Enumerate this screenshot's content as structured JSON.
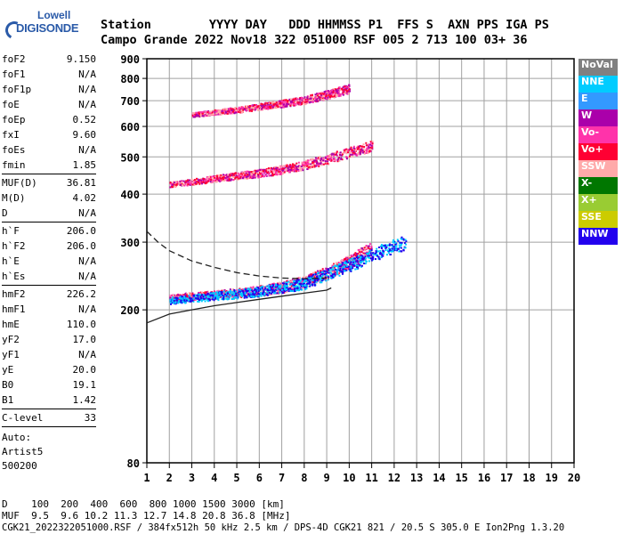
{
  "logo": {
    "line1": "Lowell",
    "line2": "DIGISONDE"
  },
  "header": {
    "row1": "Station        YYYY DAY   DDD HHMMSS P1  FFS S  AXN PPS IGA PS",
    "row2": "Campo Grande 2022 Nov18 322 051000 RSF 005 2 713 100 03+ 36"
  },
  "params_a": [
    {
      "name": "foF2",
      "value": "9.150"
    },
    {
      "name": "foF1",
      "value": "N/A"
    },
    {
      "name": "foF1p",
      "value": "N/A"
    },
    {
      "name": "foE",
      "value": "N/A"
    },
    {
      "name": "foEp",
      "value": "0.52"
    },
    {
      "name": "fxI",
      "value": "9.60"
    },
    {
      "name": "foEs",
      "value": "N/A"
    },
    {
      "name": "fmin",
      "value": "1.85"
    }
  ],
  "params_b": [
    {
      "name": "MUF(D)",
      "value": "36.81"
    },
    {
      "name": "M(D)",
      "value": "4.02"
    },
    {
      "name": "D",
      "value": "N/A"
    }
  ],
  "params_c": [
    {
      "name": "h`F",
      "value": "206.0"
    },
    {
      "name": "h`F2",
      "value": "206.0"
    },
    {
      "name": "h`E",
      "value": "N/A"
    },
    {
      "name": "h`Es",
      "value": "N/A"
    }
  ],
  "params_d": [
    {
      "name": "hmF2",
      "value": "226.2"
    },
    {
      "name": "hmF1",
      "value": "N/A"
    },
    {
      "name": "hmE",
      "value": "110.0"
    },
    {
      "name": "yF2",
      "value": "17.0"
    },
    {
      "name": "yF1",
      "value": "N/A"
    },
    {
      "name": "yE",
      "value": "20.0"
    },
    {
      "name": "B0",
      "value": "19.1"
    },
    {
      "name": "B1",
      "value": "1.42"
    }
  ],
  "params_e": [
    {
      "name": "C-level",
      "value": "33"
    }
  ],
  "auto": {
    "line1": "Auto:",
    "line2": "Artist5",
    "line3": "500200"
  },
  "legend": [
    {
      "label": "NoVal",
      "color": "#808080"
    },
    {
      "label": "NNE",
      "color": "#00ccff"
    },
    {
      "label": "E",
      "color": "#3399ff"
    },
    {
      "label": "W",
      "color": "#aa00aa"
    },
    {
      "label": "Vo-",
      "color": "#ff33aa"
    },
    {
      "label": "Vo+",
      "color": "#ff0033"
    },
    {
      "label": "SSW",
      "color": "#ffaaaa"
    },
    {
      "label": "X-",
      "color": "#007700"
    },
    {
      "label": "X+",
      "color": "#99cc33"
    },
    {
      "label": "SSE",
      "color": "#cccc00"
    },
    {
      "label": "NNW",
      "color": "#2200ee"
    }
  ],
  "footer": {
    "line1": "D    100  200  400  600  800 1000 1500 3000 [km]",
    "line2": "MUF  9.5  9.6 10.2 11.3 12.7 14.8 20.8 36.8 [MHz]",
    "line3": "CGK21_2022322051000.RSF / 384fx512h 50 kHz 2.5 km / DPS-4D CGK21 821 / 20.5 S 305.0 E Ion2Png 1.3.20"
  },
  "chart_data": {
    "type": "scatter",
    "x_ticks": [
      "1",
      "2",
      "3",
      "4",
      "5",
      "6",
      "7",
      "8",
      "9",
      "10",
      "11",
      "12",
      "13",
      "14",
      "15",
      "16",
      "17",
      "18",
      "19",
      "20"
    ],
    "y_ticks": [
      "80",
      "200",
      "300",
      "400",
      "500",
      "600",
      "700",
      "800",
      "900"
    ],
    "xlim": [
      1,
      20
    ],
    "ylim": [
      80,
      900
    ],
    "y_scale": "log",
    "grid": true,
    "series": [
      {
        "name": "Vo+",
        "points": [
          [
            2,
            215
          ],
          [
            3,
            218
          ],
          [
            4,
            220
          ],
          [
            5,
            222
          ],
          [
            6,
            225
          ],
          [
            7,
            230
          ],
          [
            8,
            238
          ],
          [
            9,
            250
          ],
          [
            10,
            268
          ],
          [
            11,
            290
          ]
        ]
      },
      {
        "name": "Vo+",
        "points": [
          [
            2,
            425
          ],
          [
            3,
            432
          ],
          [
            4,
            440
          ],
          [
            5,
            448
          ],
          [
            6,
            455
          ],
          [
            7,
            465
          ],
          [
            8,
            478
          ],
          [
            9,
            495
          ],
          [
            10,
            515
          ],
          [
            11,
            535
          ]
        ]
      },
      {
        "name": "Vo+",
        "points": [
          [
            3,
            645
          ],
          [
            4,
            655
          ],
          [
            5,
            665
          ],
          [
            6,
            678
          ],
          [
            7,
            690
          ],
          [
            8,
            705
          ],
          [
            9,
            728
          ],
          [
            10,
            755
          ]
        ]
      },
      {
        "name": "X-",
        "points": [
          [
            2,
            212
          ],
          [
            4,
            218
          ],
          [
            6,
            224
          ],
          [
            8,
            235
          ],
          [
            10,
            262
          ],
          [
            12,
            295
          ],
          [
            12.5,
            300
          ]
        ]
      }
    ],
    "curves": [
      {
        "name": "dashed",
        "points": [
          [
            1,
            320
          ],
          [
            1.5,
            300
          ],
          [
            2,
            285
          ],
          [
            3,
            268
          ],
          [
            4,
            258
          ],
          [
            5,
            250
          ],
          [
            6,
            245
          ],
          [
            7,
            242
          ],
          [
            8,
            241
          ],
          [
            9,
            242
          ]
        ]
      },
      {
        "name": "solid",
        "points": [
          [
            1,
            185
          ],
          [
            2,
            195
          ],
          [
            3,
            200
          ],
          [
            4,
            205
          ],
          [
            5,
            209
          ],
          [
            6,
            213
          ],
          [
            7,
            217
          ],
          [
            8,
            221
          ],
          [
            9,
            225
          ],
          [
            9.2,
            228
          ]
        ]
      }
    ]
  }
}
